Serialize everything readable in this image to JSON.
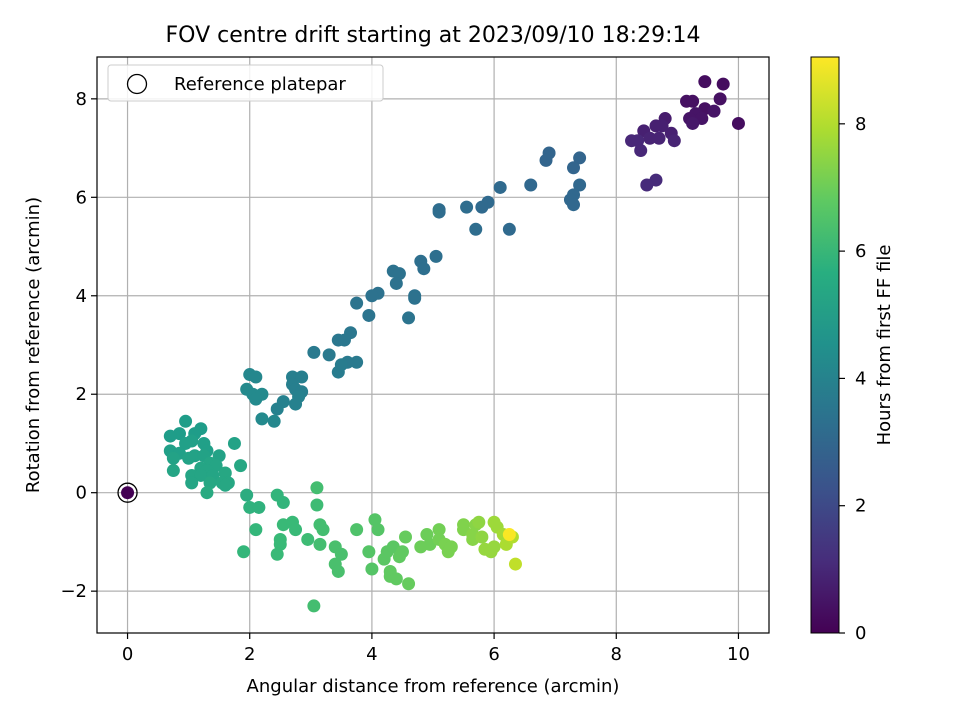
{
  "chart_data": {
    "type": "scatter",
    "title": "FOV centre drift starting at 2023/09/10 18:29:14",
    "xlabel": "Angular distance from reference (arcmin)",
    "ylabel": "Rotation from reference (arcmin)",
    "xlim": [
      -0.5,
      10.5
    ],
    "ylim": [
      -2.85,
      8.85
    ],
    "xticks": [
      0,
      2,
      4,
      6,
      8,
      10
    ],
    "xtick_labels": [
      "0",
      "2",
      "4",
      "6",
      "8",
      "10"
    ],
    "yticks": [
      -2,
      0,
      2,
      4,
      6,
      8
    ],
    "ytick_labels": [
      "−2",
      "0",
      "2",
      "4",
      "6",
      "8"
    ],
    "grid": true,
    "legend": {
      "placement": "upper-left",
      "entries": [
        {
          "label": "Reference platepar",
          "marker": "open-circle"
        }
      ]
    },
    "reference_point": {
      "x": 0,
      "y": 0
    },
    "colorbar": {
      "label": "Hours from first FF file",
      "colormap": "viridis",
      "range": [
        0,
        9.05
      ],
      "ticks": [
        0,
        2,
        4,
        6,
        8
      ],
      "tick_labels": [
        "0",
        "2",
        "4",
        "6",
        "8"
      ]
    },
    "points": [
      {
        "x": 9.45,
        "y": 8.35,
        "c": 0.3
      },
      {
        "x": 9.75,
        "y": 8.3,
        "c": 0.3
      },
      {
        "x": 9.15,
        "y": 7.95,
        "c": 0.4
      },
      {
        "x": 9.25,
        "y": 7.95,
        "c": 0.4
      },
      {
        "x": 9.7,
        "y": 8.0,
        "c": 0.4
      },
      {
        "x": 9.45,
        "y": 7.8,
        "c": 0.4
      },
      {
        "x": 9.6,
        "y": 7.75,
        "c": 0.5
      },
      {
        "x": 9.3,
        "y": 7.7,
        "c": 0.5
      },
      {
        "x": 9.2,
        "y": 7.6,
        "c": 0.5
      },
      {
        "x": 9.4,
        "y": 7.6,
        "c": 0.5
      },
      {
        "x": 9.25,
        "y": 7.5,
        "c": 0.6
      },
      {
        "x": 10.0,
        "y": 7.5,
        "c": 0.3
      },
      {
        "x": 8.8,
        "y": 7.6,
        "c": 0.7
      },
      {
        "x": 8.75,
        "y": 7.45,
        "c": 0.8
      },
      {
        "x": 8.65,
        "y": 7.45,
        "c": 0.8
      },
      {
        "x": 8.45,
        "y": 7.35,
        "c": 0.8
      },
      {
        "x": 8.9,
        "y": 7.3,
        "c": 0.8
      },
      {
        "x": 8.7,
        "y": 7.2,
        "c": 0.9
      },
      {
        "x": 8.55,
        "y": 7.2,
        "c": 0.9
      },
      {
        "x": 8.35,
        "y": 7.15,
        "c": 1.0
      },
      {
        "x": 8.25,
        "y": 7.15,
        "c": 1.0
      },
      {
        "x": 8.95,
        "y": 7.15,
        "c": 0.9
      },
      {
        "x": 8.4,
        "y": 6.95,
        "c": 1.0
      },
      {
        "x": 8.65,
        "y": 6.35,
        "c": 1.1
      },
      {
        "x": 8.5,
        "y": 6.25,
        "c": 1.1
      },
      {
        "x": 6.9,
        "y": 6.9,
        "c": 2.9
      },
      {
        "x": 6.85,
        "y": 6.75,
        "c": 2.9
      },
      {
        "x": 7.4,
        "y": 6.8,
        "c": 2.9
      },
      {
        "x": 7.3,
        "y": 6.6,
        "c": 2.9
      },
      {
        "x": 6.6,
        "y": 6.25,
        "c": 3.0
      },
      {
        "x": 7.4,
        "y": 6.25,
        "c": 3.0
      },
      {
        "x": 7.3,
        "y": 6.05,
        "c": 3.0
      },
      {
        "x": 7.25,
        "y": 5.95,
        "c": 3.0
      },
      {
        "x": 7.3,
        "y": 5.85,
        "c": 3.0
      },
      {
        "x": 6.1,
        "y": 6.2,
        "c": 3.1
      },
      {
        "x": 5.9,
        "y": 5.9,
        "c": 3.1
      },
      {
        "x": 5.8,
        "y": 5.8,
        "c": 3.1
      },
      {
        "x": 5.55,
        "y": 5.8,
        "c": 3.2
      },
      {
        "x": 5.1,
        "y": 5.75,
        "c": 3.2
      },
      {
        "x": 5.1,
        "y": 5.7,
        "c": 3.2
      },
      {
        "x": 5.7,
        "y": 5.35,
        "c": 3.2
      },
      {
        "x": 6.25,
        "y": 5.35,
        "c": 3.1
      },
      {
        "x": 5.05,
        "y": 4.8,
        "c": 3.3
      },
      {
        "x": 4.8,
        "y": 4.7,
        "c": 3.3
      },
      {
        "x": 4.85,
        "y": 4.55,
        "c": 3.3
      },
      {
        "x": 4.35,
        "y": 4.5,
        "c": 3.4
      },
      {
        "x": 4.45,
        "y": 4.45,
        "c": 3.4
      },
      {
        "x": 4.4,
        "y": 4.25,
        "c": 3.4
      },
      {
        "x": 4.1,
        "y": 4.05,
        "c": 3.4
      },
      {
        "x": 4.0,
        "y": 4.0,
        "c": 3.4
      },
      {
        "x": 4.7,
        "y": 4.0,
        "c": 3.4
      },
      {
        "x": 4.7,
        "y": 3.95,
        "c": 3.4
      },
      {
        "x": 3.75,
        "y": 3.85,
        "c": 3.5
      },
      {
        "x": 3.95,
        "y": 3.6,
        "c": 3.5
      },
      {
        "x": 4.6,
        "y": 3.55,
        "c": 3.5
      },
      {
        "x": 3.65,
        "y": 3.25,
        "c": 3.6
      },
      {
        "x": 3.45,
        "y": 3.1,
        "c": 3.6
      },
      {
        "x": 3.55,
        "y": 3.1,
        "c": 3.6
      },
      {
        "x": 3.05,
        "y": 2.85,
        "c": 3.7
      },
      {
        "x": 3.3,
        "y": 2.8,
        "c": 3.7
      },
      {
        "x": 3.6,
        "y": 2.65,
        "c": 3.7
      },
      {
        "x": 3.75,
        "y": 2.65,
        "c": 3.7
      },
      {
        "x": 3.5,
        "y": 2.6,
        "c": 3.8
      },
      {
        "x": 3.45,
        "y": 2.45,
        "c": 3.8
      },
      {
        "x": 2.7,
        "y": 2.35,
        "c": 3.9
      },
      {
        "x": 2.85,
        "y": 2.35,
        "c": 3.9
      },
      {
        "x": 2.7,
        "y": 2.2,
        "c": 3.9
      },
      {
        "x": 2.75,
        "y": 2.1,
        "c": 3.9
      },
      {
        "x": 2.85,
        "y": 2.05,
        "c": 3.9
      },
      {
        "x": 2.8,
        "y": 1.95,
        "c": 4.0
      },
      {
        "x": 2.55,
        "y": 1.85,
        "c": 4.0
      },
      {
        "x": 2.75,
        "y": 1.8,
        "c": 4.0
      },
      {
        "x": 2.45,
        "y": 1.7,
        "c": 4.0
      },
      {
        "x": 2.0,
        "y": 2.4,
        "c": 4.2
      },
      {
        "x": 2.1,
        "y": 2.35,
        "c": 4.2
      },
      {
        "x": 1.95,
        "y": 2.1,
        "c": 4.3
      },
      {
        "x": 2.05,
        "y": 2.0,
        "c": 4.3
      },
      {
        "x": 2.2,
        "y": 2.0,
        "c": 4.3
      },
      {
        "x": 2.1,
        "y": 1.9,
        "c": 4.3
      },
      {
        "x": 2.2,
        "y": 1.5,
        "c": 4.3
      },
      {
        "x": 2.4,
        "y": 1.45,
        "c": 4.2
      },
      {
        "x": 0.95,
        "y": 1.45,
        "c": 5.0
      },
      {
        "x": 1.2,
        "y": 1.3,
        "c": 5.0
      },
      {
        "x": 0.85,
        "y": 1.2,
        "c": 5.0
      },
      {
        "x": 1.1,
        "y": 1.2,
        "c": 5.0
      },
      {
        "x": 0.7,
        "y": 1.15,
        "c": 5.0
      },
      {
        "x": 1.05,
        "y": 1.05,
        "c": 5.1
      },
      {
        "x": 0.95,
        "y": 1.0,
        "c": 5.1
      },
      {
        "x": 1.25,
        "y": 1.0,
        "c": 5.1
      },
      {
        "x": 1.75,
        "y": 1.0,
        "c": 5.2
      },
      {
        "x": 0.7,
        "y": 0.85,
        "c": 5.1
      },
      {
        "x": 1.3,
        "y": 0.85,
        "c": 5.1
      },
      {
        "x": 0.85,
        "y": 0.8,
        "c": 5.1
      },
      {
        "x": 1.1,
        "y": 0.75,
        "c": 5.2
      },
      {
        "x": 1.25,
        "y": 0.75,
        "c": 5.2
      },
      {
        "x": 1.5,
        "y": 0.75,
        "c": 5.2
      },
      {
        "x": 0.75,
        "y": 0.7,
        "c": 5.2
      },
      {
        "x": 1.0,
        "y": 0.7,
        "c": 5.2
      },
      {
        "x": 1.35,
        "y": 0.6,
        "c": 5.3
      },
      {
        "x": 1.45,
        "y": 0.55,
        "c": 5.3
      },
      {
        "x": 1.85,
        "y": 0.55,
        "c": 5.4
      },
      {
        "x": 1.2,
        "y": 0.5,
        "c": 5.3
      },
      {
        "x": 0.75,
        "y": 0.45,
        "c": 5.3
      },
      {
        "x": 1.3,
        "y": 0.45,
        "c": 5.3
      },
      {
        "x": 1.6,
        "y": 0.4,
        "c": 5.4
      },
      {
        "x": 1.05,
        "y": 0.35,
        "c": 5.3
      },
      {
        "x": 1.2,
        "y": 0.35,
        "c": 5.3
      },
      {
        "x": 1.4,
        "y": 0.35,
        "c": 5.3
      },
      {
        "x": 1.05,
        "y": 0.2,
        "c": 5.3
      },
      {
        "x": 1.35,
        "y": 0.2,
        "c": 5.4
      },
      {
        "x": 1.55,
        "y": 0.2,
        "c": 5.4
      },
      {
        "x": 1.65,
        "y": 0.2,
        "c": 5.4
      },
      {
        "x": 1.3,
        "y": 0.0,
        "c": 5.5
      },
      {
        "x": 1.6,
        "y": 0.15,
        "c": 5.4
      },
      {
        "x": 1.95,
        "y": -0.05,
        "c": 5.6
      },
      {
        "x": 2.0,
        "y": -0.3,
        "c": 5.8
      },
      {
        "x": 2.15,
        "y": -0.3,
        "c": 5.8
      },
      {
        "x": 2.55,
        "y": -0.2,
        "c": 5.9
      },
      {
        "x": 2.45,
        "y": -0.05,
        "c": 5.9
      },
      {
        "x": 2.1,
        "y": -0.75,
        "c": 6.0
      },
      {
        "x": 1.9,
        "y": -1.2,
        "c": 6.0
      },
      {
        "x": 2.55,
        "y": -0.65,
        "c": 6.1
      },
      {
        "x": 2.7,
        "y": -0.6,
        "c": 6.1
      },
      {
        "x": 2.75,
        "y": -0.75,
        "c": 6.1
      },
      {
        "x": 2.5,
        "y": -0.95,
        "c": 6.1
      },
      {
        "x": 2.5,
        "y": -1.05,
        "c": 6.1
      },
      {
        "x": 2.45,
        "y": -1.25,
        "c": 6.1
      },
      {
        "x": 2.95,
        "y": -0.95,
        "c": 6.2
      },
      {
        "x": 3.1,
        "y": -0.25,
        "c": 6.2
      },
      {
        "x": 3.1,
        "y": 0.1,
        "c": 6.3
      },
      {
        "x": 3.15,
        "y": -0.65,
        "c": 6.3
      },
      {
        "x": 3.2,
        "y": -0.75,
        "c": 6.3
      },
      {
        "x": 3.15,
        "y": -1.05,
        "c": 6.3
      },
      {
        "x": 3.4,
        "y": -1.1,
        "c": 6.4
      },
      {
        "x": 3.5,
        "y": -1.25,
        "c": 6.4
      },
      {
        "x": 3.4,
        "y": -1.45,
        "c": 6.4
      },
      {
        "x": 3.45,
        "y": -1.6,
        "c": 6.4
      },
      {
        "x": 3.05,
        "y": -2.3,
        "c": 6.3
      },
      {
        "x": 3.75,
        "y": -0.75,
        "c": 6.5
      },
      {
        "x": 4.05,
        "y": -0.55,
        "c": 6.6
      },
      {
        "x": 4.1,
        "y": -0.75,
        "c": 6.6
      },
      {
        "x": 3.95,
        "y": -1.2,
        "c": 6.6
      },
      {
        "x": 4.0,
        "y": -1.55,
        "c": 6.6
      },
      {
        "x": 4.2,
        "y": -1.35,
        "c": 6.7
      },
      {
        "x": 4.25,
        "y": -1.2,
        "c": 6.7
      },
      {
        "x": 4.35,
        "y": -1.1,
        "c": 6.7
      },
      {
        "x": 4.5,
        "y": -1.2,
        "c": 6.8
      },
      {
        "x": 4.3,
        "y": -1.6,
        "c": 6.8
      },
      {
        "x": 4.3,
        "y": -1.7,
        "c": 6.8
      },
      {
        "x": 4.4,
        "y": -1.75,
        "c": 6.8
      },
      {
        "x": 4.6,
        "y": -1.85,
        "c": 6.9
      },
      {
        "x": 4.45,
        "y": -1.3,
        "c": 6.8
      },
      {
        "x": 4.55,
        "y": -0.9,
        "c": 6.9
      },
      {
        "x": 4.8,
        "y": -1.1,
        "c": 7.0
      },
      {
        "x": 4.9,
        "y": -0.85,
        "c": 7.0
      },
      {
        "x": 4.95,
        "y": -1.05,
        "c": 7.0
      },
      {
        "x": 5.1,
        "y": -0.75,
        "c": 7.1
      },
      {
        "x": 5.1,
        "y": -0.95,
        "c": 7.1
      },
      {
        "x": 5.2,
        "y": -1.05,
        "c": 7.2
      },
      {
        "x": 5.25,
        "y": -1.2,
        "c": 7.2
      },
      {
        "x": 5.3,
        "y": -1.1,
        "c": 7.2
      },
      {
        "x": 5.5,
        "y": -0.65,
        "c": 7.3
      },
      {
        "x": 5.5,
        "y": -0.75,
        "c": 7.3
      },
      {
        "x": 5.65,
        "y": -0.85,
        "c": 7.4
      },
      {
        "x": 5.7,
        "y": -0.65,
        "c": 7.4
      },
      {
        "x": 5.75,
        "y": -0.6,
        "c": 7.5
      },
      {
        "x": 5.65,
        "y": -0.95,
        "c": 7.4
      },
      {
        "x": 5.8,
        "y": -0.9,
        "c": 7.5
      },
      {
        "x": 5.85,
        "y": -1.15,
        "c": 7.6
      },
      {
        "x": 5.95,
        "y": -1.2,
        "c": 7.6
      },
      {
        "x": 6.0,
        "y": -1.1,
        "c": 7.6
      },
      {
        "x": 6.05,
        "y": -0.7,
        "c": 7.7
      },
      {
        "x": 6.0,
        "y": -0.6,
        "c": 7.7
      },
      {
        "x": 6.15,
        "y": -0.85,
        "c": 7.8
      },
      {
        "x": 6.2,
        "y": -1.05,
        "c": 7.9
      },
      {
        "x": 6.3,
        "y": -0.9,
        "c": 8.0
      },
      {
        "x": 6.35,
        "y": -1.45,
        "c": 8.2
      },
      {
        "x": 6.25,
        "y": -0.85,
        "c": 9.0
      }
    ]
  }
}
